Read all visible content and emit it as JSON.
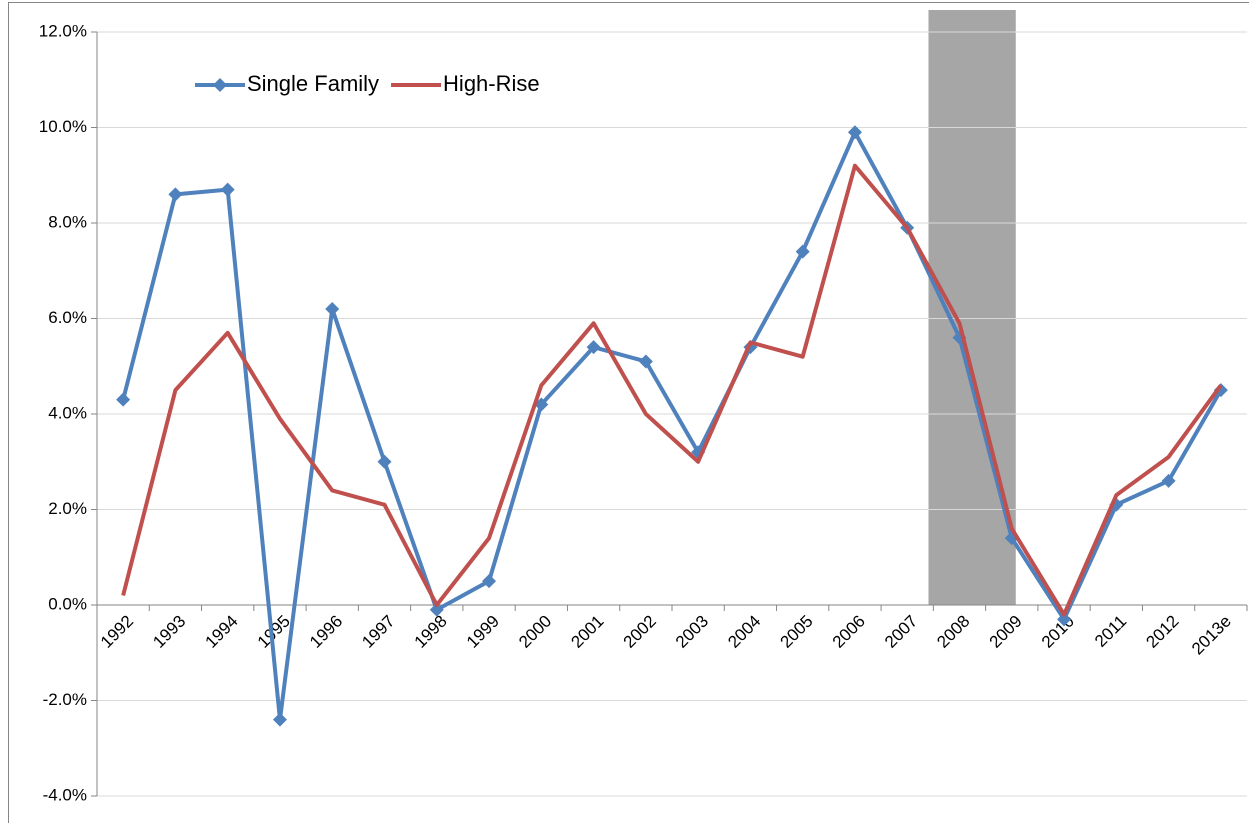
{
  "chart_data": {
    "type": "line",
    "categories": [
      "1992",
      "1993",
      "1994",
      "1995",
      "1996",
      "1997",
      "1998",
      "1999",
      "2000",
      "2001",
      "2002",
      "2003",
      "2004",
      "2005",
      "2006",
      "2007",
      "2008",
      "2009",
      "2010",
      "2011",
      "2012",
      "2013e"
    ],
    "series": [
      {
        "name": "Single Family",
        "color": "#4f81bd",
        "marker": "diamond",
        "values": [
          4.3,
          8.6,
          8.7,
          -2.4,
          6.2,
          3.0,
          -0.1,
          0.5,
          4.2,
          5.4,
          5.1,
          3.2,
          5.4,
          7.4,
          9.9,
          7.9,
          5.6,
          1.4,
          -0.3,
          2.1,
          2.6,
          4.5
        ]
      },
      {
        "name": "High-Rise",
        "color": "#c0504d",
        "marker": "none",
        "values": [
          0.2,
          4.5,
          5.7,
          3.9,
          2.4,
          2.1,
          0.0,
          1.4,
          4.6,
          5.9,
          4.0,
          3.0,
          5.5,
          5.2,
          9.2,
          7.9,
          5.9,
          1.6,
          -0.2,
          2.3,
          3.1,
          4.6
        ]
      }
    ],
    "ylim": [
      -4,
      12
    ],
    "yticks": [
      {
        "value": -4,
        "label": "-4.0%"
      },
      {
        "value": -2,
        "label": "-2.0%"
      },
      {
        "value": 0,
        "label": "0.0%"
      },
      {
        "value": 2,
        "label": "2.0%"
      },
      {
        "value": 4,
        "label": "4.0%"
      },
      {
        "value": 6,
        "label": "6.0%"
      },
      {
        "value": 8,
        "label": "8.0%"
      },
      {
        "value": 10,
        "label": "10.0%"
      },
      {
        "value": 12,
        "label": "12.0%"
      }
    ],
    "grid": true,
    "legend": "top-left",
    "shaded_categories": [
      16,
      17
    ],
    "shade_color": "#a6a6a6"
  }
}
